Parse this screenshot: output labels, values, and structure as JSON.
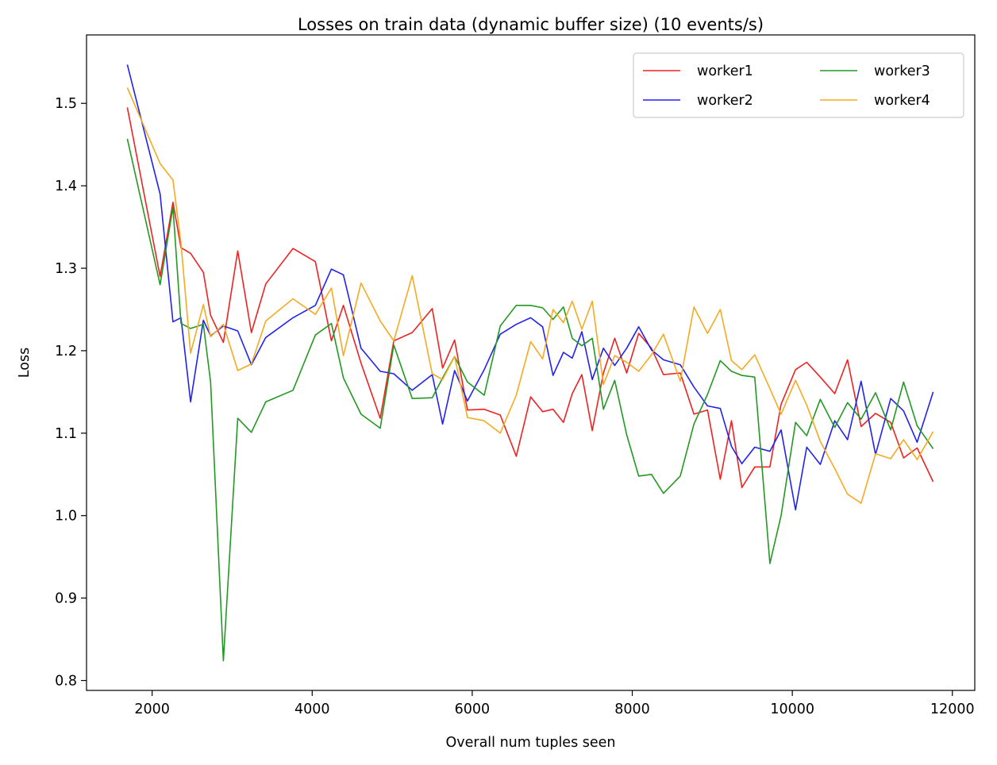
{
  "chart_data": {
    "type": "line",
    "title": "Losses on train data (dynamic buffer size) (10 events/s)",
    "xlabel": "Overall num tuples seen",
    "ylabel": "Loss",
    "xlim": [
      1180,
      12280
    ],
    "ylim": [
      0.788,
      1.583
    ],
    "xticks": [
      2000,
      4000,
      6000,
      8000,
      10000,
      12000
    ],
    "xtick_labels": [
      "2000",
      "4000",
      "6000",
      "8000",
      "10000",
      "12000"
    ],
    "yticks": [
      0.8,
      0.9,
      1.0,
      1.1,
      1.2,
      1.3,
      1.4,
      1.5
    ],
    "ytick_labels": [
      "0.8",
      "0.9",
      "1.0",
      "1.1",
      "1.2",
      "1.3",
      "1.4",
      "1.5"
    ],
    "grid": false,
    "legend": {
      "placement": "top-right",
      "columns": 2
    },
    "x": [
      1690,
      2100,
      2260,
      2360,
      2480,
      2640,
      2730,
      2890,
      3070,
      3240,
      3420,
      3760,
      4040,
      4240,
      4390,
      4610,
      4850,
      5020,
      5250,
      5500,
      5630,
      5780,
      5940,
      6150,
      6350,
      6550,
      6730,
      6880,
      7010,
      7140,
      7250,
      7370,
      7500,
      7640,
      7780,
      7930,
      8080,
      8240,
      8390,
      8600,
      8770,
      8940,
      9100,
      9240,
      9370,
      9530,
      9720,
      9860,
      10040,
      10180,
      10350,
      10530,
      10690,
      10860,
      11040,
      11230,
      11390,
      11560,
      11760
    ],
    "series": [
      {
        "name": "worker1",
        "color": "#ee2222",
        "values": [
          1.495,
          1.29,
          1.38,
          1.325,
          1.318,
          1.295,
          1.243,
          1.21,
          1.321,
          1.222,
          1.281,
          1.324,
          1.308,
          1.212,
          1.255,
          1.185,
          1.118,
          1.212,
          1.222,
          1.251,
          1.179,
          1.213,
          1.128,
          1.129,
          1.122,
          1.072,
          1.144,
          1.126,
          1.129,
          1.113,
          1.148,
          1.171,
          1.103,
          1.173,
          1.215,
          1.173,
          1.221,
          1.203,
          1.171,
          1.173,
          1.123,
          1.128,
          1.044,
          1.115,
          1.034,
          1.059,
          1.059,
          1.135,
          1.177,
          1.186,
          1.168,
          1.148,
          1.189,
          1.108,
          1.124,
          1.113,
          1.07,
          1.082,
          1.041
        ]
      },
      {
        "name": "worker2",
        "color": "#2222ee",
        "values": [
          1.547,
          1.39,
          1.235,
          1.24,
          1.138,
          1.237,
          1.218,
          1.23,
          1.224,
          1.183,
          1.216,
          1.24,
          1.255,
          1.299,
          1.292,
          1.203,
          1.175,
          1.172,
          1.152,
          1.171,
          1.111,
          1.176,
          1.139,
          1.177,
          1.22,
          1.232,
          1.24,
          1.229,
          1.17,
          1.198,
          1.191,
          1.223,
          1.165,
          1.203,
          1.182,
          1.203,
          1.229,
          1.201,
          1.189,
          1.183,
          1.156,
          1.133,
          1.13,
          1.084,
          1.063,
          1.083,
          1.078,
          1.104,
          1.007,
          1.083,
          1.062,
          1.115,
          1.092,
          1.163,
          1.074,
          1.142,
          1.127,
          1.089,
          1.15
        ]
      },
      {
        "name": "worker3",
        "color": "#229922",
        "values": [
          1.457,
          1.28,
          1.374,
          1.233,
          1.227,
          1.232,
          1.162,
          0.824,
          1.118,
          1.101,
          1.138,
          1.152,
          1.219,
          1.233,
          1.167,
          1.123,
          1.106,
          1.207,
          1.142,
          1.143,
          1.167,
          1.193,
          1.162,
          1.146,
          1.23,
          1.255,
          1.255,
          1.252,
          1.238,
          1.253,
          1.215,
          1.206,
          1.215,
          1.129,
          1.164,
          1.098,
          1.048,
          1.05,
          1.027,
          1.048,
          1.111,
          1.147,
          1.188,
          1.175,
          1.17,
          1.168,
          0.942,
          1.0,
          1.113,
          1.097,
          1.141,
          1.107,
          1.137,
          1.117,
          1.149,
          1.104,
          1.162,
          1.109,
          1.081
        ]
      },
      {
        "name": "worker4",
        "color": "#f5aa22",
        "values": [
          1.519,
          1.427,
          1.407,
          1.33,
          1.197,
          1.256,
          1.217,
          1.232,
          1.176,
          1.184,
          1.236,
          1.263,
          1.244,
          1.276,
          1.194,
          1.282,
          1.236,
          1.212,
          1.291,
          1.172,
          1.165,
          1.193,
          1.119,
          1.115,
          1.1,
          1.146,
          1.211,
          1.19,
          1.25,
          1.234,
          1.26,
          1.226,
          1.26,
          1.159,
          1.194,
          1.186,
          1.175,
          1.195,
          1.22,
          1.163,
          1.253,
          1.221,
          1.25,
          1.188,
          1.177,
          1.195,
          1.154,
          1.123,
          1.164,
          1.134,
          1.09,
          1.057,
          1.026,
          1.015,
          1.075,
          1.069,
          1.092,
          1.068,
          1.102
        ]
      }
    ]
  }
}
